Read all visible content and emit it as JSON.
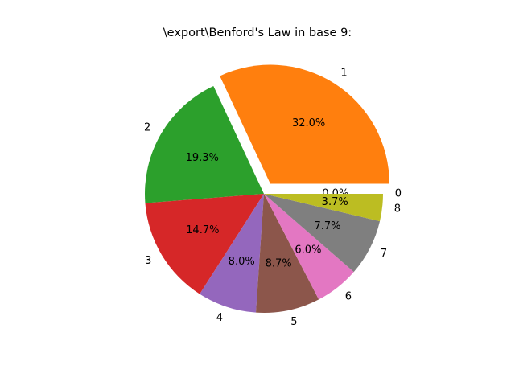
{
  "chart_data": {
    "type": "pie",
    "title": "\\export\\Benford's Law in base 9:",
    "start_angle_deg": 0,
    "direction": "counterclockwise",
    "explode": {
      "label": "1",
      "fraction": 0.1
    },
    "slices": [
      {
        "label": "0",
        "value": 0.0,
        "pct": "0.0%",
        "color": "#1f77b4"
      },
      {
        "label": "1",
        "value": 32.0,
        "pct": "32.0%",
        "color": "#ff7f0e"
      },
      {
        "label": "2",
        "value": 19.3,
        "pct": "19.3%",
        "color": "#2ca02c"
      },
      {
        "label": "3",
        "value": 14.7,
        "pct": "14.7%",
        "color": "#d62728"
      },
      {
        "label": "4",
        "value": 8.0,
        "pct": "8.0%",
        "color": "#9467bd"
      },
      {
        "label": "5",
        "value": 8.7,
        "pct": "8.7%",
        "color": "#8c564b"
      },
      {
        "label": "6",
        "value": 6.0,
        "pct": "6.0%",
        "color": "#e377c2"
      },
      {
        "label": "7",
        "value": 7.7,
        "pct": "7.7%",
        "color": "#7f7f7f"
      },
      {
        "label": "8",
        "value": 3.7,
        "pct": "3.7%",
        "color": "#bcbd22"
      }
    ]
  }
}
